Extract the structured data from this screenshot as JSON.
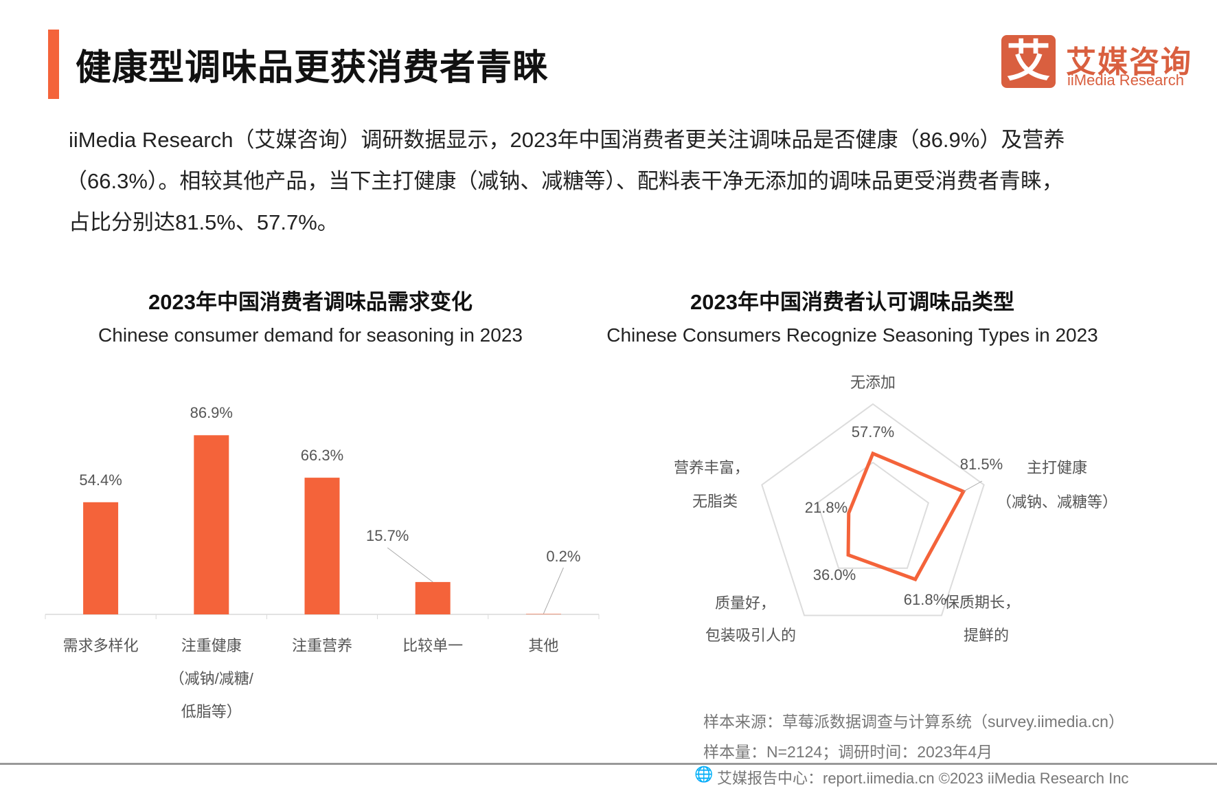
{
  "header": {
    "title": "健康型调味品更获消费者青睐",
    "logo_cn": "艾媒咨询",
    "logo_en": "iiMedia Research",
    "logo_mark": "艾",
    "accent_color": "#f4633a"
  },
  "paragraph": [
    "iiMedia  Research（艾媒咨询）调研数据显示，2023年中国消费者更关注调味品是否健康（86.9%）及营养",
    "（66.3%）。相较其他产品，当下主打健康（减钠、减糖等）、配料表干净无添加的调味品更受消费者青睐，",
    "占比分别达81.5%、57.7%。"
  ],
  "chart_data": [
    {
      "type": "bar",
      "title": "2023年中国消费者调味品需求变化",
      "subtitle": "Chinese consumer demand for seasoning in 2023",
      "categories": [
        [
          "需求多样化"
        ],
        [
          "注重健康",
          "（减钠/减糖/",
          "低脂等）"
        ],
        [
          "注重营养"
        ],
        [
          "比较单一"
        ],
        [
          "其他"
        ]
      ],
      "values": [
        54.4,
        86.9,
        66.3,
        15.7,
        0.2
      ],
      "data_labels": [
        "54.4%",
        "86.9%",
        "66.3%",
        "15.7%",
        "0.2%"
      ],
      "ylim": [
        0,
        100
      ],
      "grid": false,
      "color": "#f4633a"
    },
    {
      "type": "radar",
      "title": "2023年中国消费者认可调味品类型",
      "subtitle": "Chinese Consumers Recognize Seasoning Types in 2023",
      "categories": [
        [
          "无添加"
        ],
        [
          "主打健康",
          "（减钠、减糖等）"
        ],
        [
          "保质期长，",
          "提鲜的"
        ],
        [
          "质量好，",
          "包装吸引人的"
        ],
        [
          "营养丰富，",
          "无脂类"
        ]
      ],
      "values": [
        57.7,
        81.5,
        61.8,
        36.0,
        21.8
      ],
      "data_labels": [
        "57.7%",
        "81.5%",
        "61.8%",
        "36.0%",
        "21.8%"
      ],
      "rlim": [
        0,
        100
      ],
      "color": "#f4633a"
    }
  ],
  "footer": {
    "source": "样本来源：草莓派数据调查与计算系统（survey.iimedia.cn）",
    "sample": "样本量：N=2124；调研时间：2023年4月",
    "credit": "艾媒报告中心：report.iimedia.cn   ©2023  iiMedia Research  Inc"
  }
}
